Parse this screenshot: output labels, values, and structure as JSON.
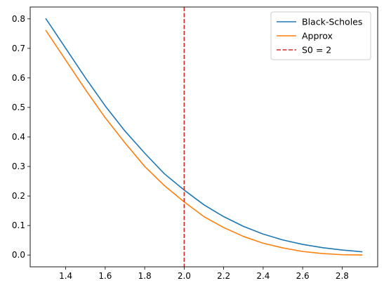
{
  "chart_data": {
    "type": "line",
    "title": "",
    "xlabel": "",
    "ylabel": "",
    "xlim": [
      1.22,
      2.98
    ],
    "ylim": [
      -0.04,
      0.84
    ],
    "xticks": [
      1.4,
      1.6,
      1.8,
      2.0,
      2.2,
      2.4,
      2.6,
      2.8
    ],
    "xtick_labels": [
      "1.4",
      "1.6",
      "1.8",
      "2.0",
      "2.2",
      "2.4",
      "2.6",
      "2.8"
    ],
    "yticks": [
      0.0,
      0.1,
      0.2,
      0.3,
      0.4,
      0.5,
      0.6,
      0.7,
      0.8
    ],
    "ytick_labels": [
      "0.0",
      "0.1",
      "0.2",
      "0.3",
      "0.4",
      "0.5",
      "0.6",
      "0.7",
      "0.8"
    ],
    "grid": false,
    "legend_position": "top-right",
    "x": [
      1.3,
      1.4,
      1.5,
      1.6,
      1.7,
      1.8,
      1.9,
      2.0,
      2.1,
      2.2,
      2.3,
      2.4,
      2.5,
      2.6,
      2.7,
      2.8,
      2.9
    ],
    "series": [
      {
        "name": "Black-Scholes",
        "color": "#1f77b4",
        "style": "solid",
        "values": [
          0.8,
          0.7,
          0.6,
          0.505,
          0.42,
          0.345,
          0.275,
          0.22,
          0.17,
          0.13,
          0.097,
          0.071,
          0.051,
          0.036,
          0.025,
          0.017,
          0.011
        ]
      },
      {
        "name": "Approx",
        "color": "#ff7f0e",
        "style": "solid",
        "values": [
          0.76,
          0.66,
          0.56,
          0.465,
          0.38,
          0.3,
          0.235,
          0.18,
          0.13,
          0.093,
          0.063,
          0.04,
          0.024,
          0.012,
          0.005,
          0.001,
          0.0
        ]
      }
    ],
    "vlines": [
      {
        "name": "S0 = 2",
        "x": 2.0,
        "color": "#d62728",
        "style": "dashed"
      }
    ]
  }
}
